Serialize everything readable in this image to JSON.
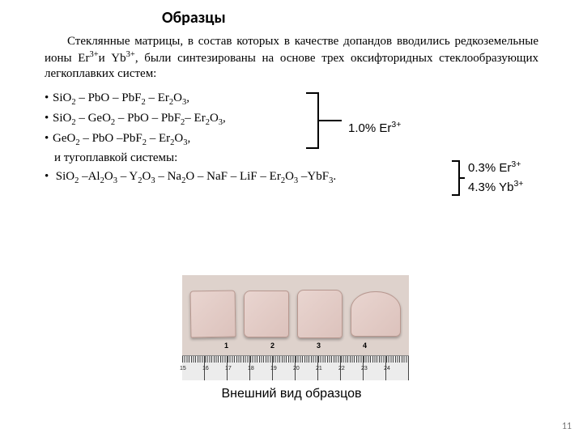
{
  "title": "Образцы",
  "intro": "Стеклянные матрицы, в состав которых в качестве допандов вводились редкоземельные ионы Er³⁺и Yb³⁺, были синтезированы на основе трех оксифторидных стеклообразующих легкоплавких систем:",
  "formulas": {
    "f1": "SiO₂ – PbO – PbF₂ – Er₂O₃,",
    "f2": "SiO₂ – GeO₂ – PbO – PbF₂– Er₂O₃,",
    "f3": "GeO₂ – PbO –PbF₂ – Er₂O₃,",
    "note": "и тугоплавкой системы:",
    "f4": " SiO₂ –Al₂O₃ – Y₂O₃ – Na₂O – NaF – LiF – Er₂O₃ –YbF₃."
  },
  "label_er": "1.0% Er³⁺",
  "label_er2": "0.3% Er³⁺",
  "label_yb": "4.3% Yb³⁺",
  "sample_numbers": [
    "1",
    "2",
    "3",
    "4"
  ],
  "ruler_numbers": [
    "15",
    "16",
    "17",
    "18",
    "19",
    "20",
    "21",
    "22",
    "23",
    "24"
  ],
  "caption": "Внешний вид образцов",
  "pagenum": "11",
  "colors": {
    "background": "#ffffff",
    "text": "#000000",
    "photo_bg": "#ded2cc",
    "sample_fill_a": "#e9d5d0",
    "sample_fill_b": "#dcc2bc",
    "ruler_bg": "#ececec",
    "pagenum_color": "#7a7a7a"
  },
  "typography": {
    "title_fontsize": 20,
    "body_fontsize": 15,
    "caption_fontsize": 16,
    "pagenum_fontsize": 12,
    "ruler_num_fontsize": 7,
    "sample_label_fontsize": 9,
    "body_font": "Times New Roman",
    "title_font": "Calibri",
    "label_font": "Arial"
  }
}
